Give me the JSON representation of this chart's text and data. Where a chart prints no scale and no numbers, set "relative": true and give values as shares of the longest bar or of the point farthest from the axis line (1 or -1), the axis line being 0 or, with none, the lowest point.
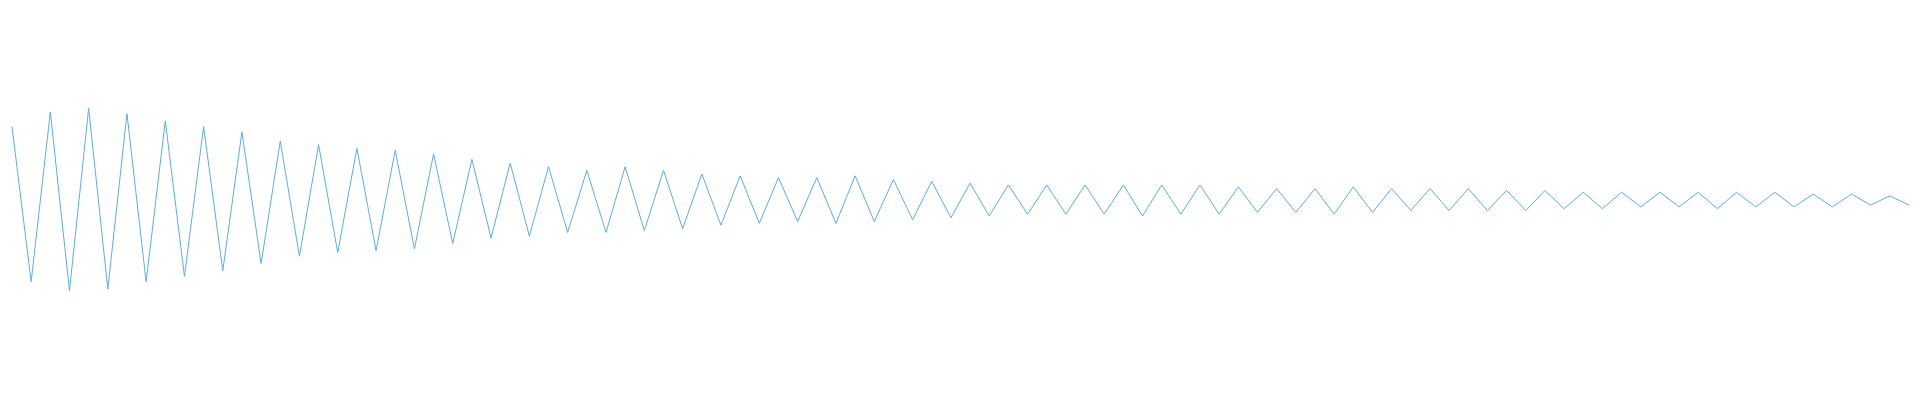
{
  "chart_data": {
    "type": "line",
    "relative": true,
    "categories": [
      null,
      null,
      null,
      null,
      null,
      null,
      null,
      null,
      null,
      null,
      null,
      null,
      null,
      null,
      null,
      null,
      null,
      null,
      null,
      null,
      null,
      null,
      null,
      null,
      null,
      null,
      null,
      null,
      null,
      null,
      null,
      null,
      null,
      null,
      null,
      null,
      null,
      null,
      null,
      null,
      null,
      null,
      null,
      null,
      null,
      null,
      null,
      null,
      null,
      null,
      null,
      null,
      null,
      null,
      null,
      null,
      null,
      null,
      null,
      null,
      null,
      null,
      null,
      null,
      null,
      null,
      null,
      null,
      null,
      null,
      null,
      null,
      null,
      null,
      null,
      null,
      null,
      null,
      null,
      null,
      null,
      null,
      null,
      null,
      null,
      null,
      null,
      null,
      null,
      null,
      null,
      null,
      null,
      null,
      null,
      null,
      null,
      null,
      null,
      null
    ],
    "series": [
      {
        "color": "#5dade2",
        "values": [
          0.9,
          0.05,
          0.98,
          0.0,
          1.0,
          0.01,
          0.97,
          0.05,
          0.93,
          0.08,
          0.9,
          0.11,
          0.87,
          0.15,
          0.82,
          0.19,
          0.8,
          0.21,
          0.78,
          0.22,
          0.77,
          0.23,
          0.75,
          0.26,
          0.72,
          0.29,
          0.7,
          0.3,
          0.68,
          0.32,
          0.66,
          0.32,
          0.68,
          0.33,
          0.66,
          0.34,
          0.64,
          0.36,
          0.63,
          0.37,
          0.62,
          0.38,
          0.62,
          0.37,
          0.63,
          0.38,
          0.61,
          0.39,
          0.6,
          0.4,
          0.59,
          0.41,
          0.58,
          0.42,
          0.58,
          0.42,
          0.58,
          0.42,
          0.58,
          0.41,
          0.58,
          0.42,
          0.58,
          0.42,
          0.57,
          0.43,
          0.56,
          0.43,
          0.56,
          0.42,
          0.57,
          0.43,
          0.56,
          0.44,
          0.56,
          0.44,
          0.56,
          0.44,
          0.55,
          0.44,
          0.55,
          0.45,
          0.54,
          0.45,
          0.54,
          0.46,
          0.54,
          0.46,
          0.54,
          0.45,
          0.54,
          0.46,
          0.54,
          0.46,
          0.53,
          0.46,
          0.53,
          0.47,
          0.52,
          0.47
        ]
      }
    ],
    "grid": false
  }
}
